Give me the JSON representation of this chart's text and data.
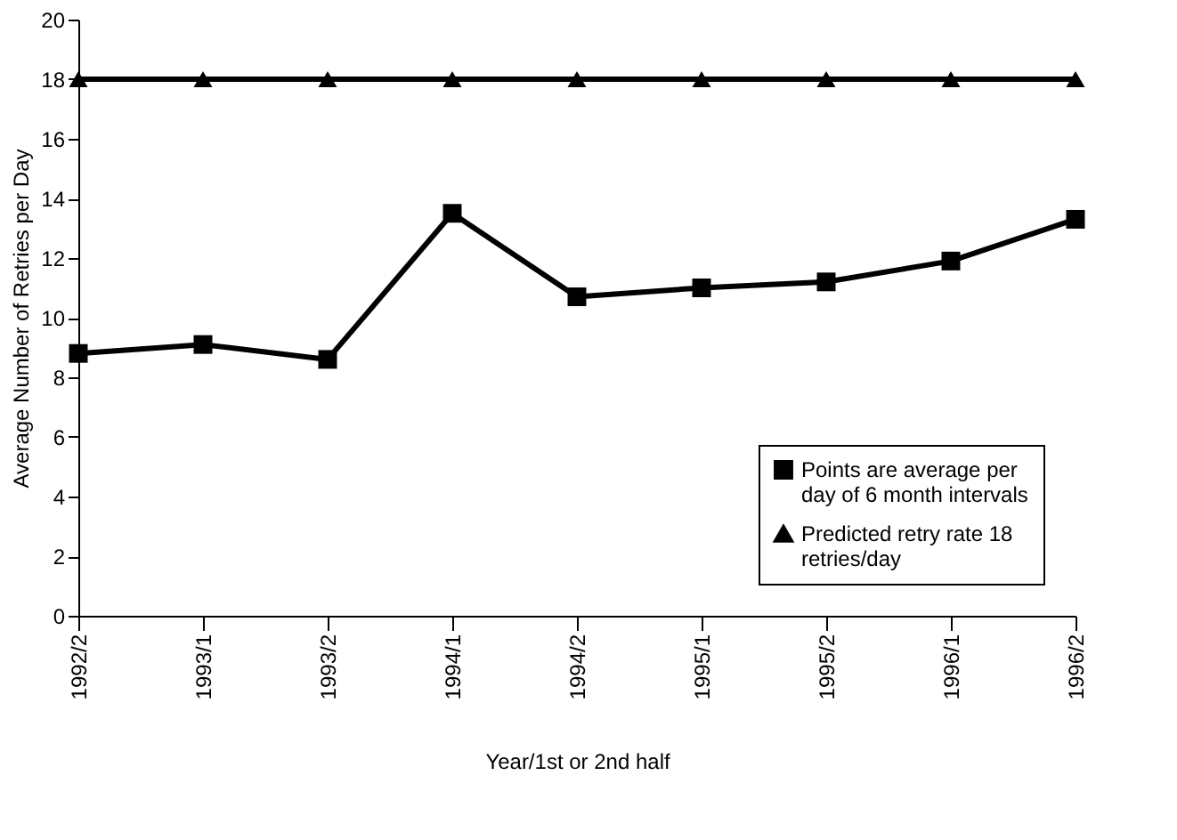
{
  "chart_data": {
    "type": "line",
    "xlabel": "Year/1st or 2nd half",
    "ylabel": "Average Number of Retries per Day",
    "categories": [
      "1992/2",
      "1993/1",
      "1993/2",
      "1994/1",
      "1994/2",
      "1995/1",
      "1995/2",
      "1996/1",
      "1996/2"
    ],
    "series": [
      {
        "name": "Points are average per day of 6 month intervals",
        "color": "#000000",
        "marker": "square",
        "values": [
          8.8,
          9.1,
          8.6,
          13.5,
          10.7,
          11.0,
          11.2,
          11.9,
          13.3
        ]
      },
      {
        "name": "Predicted retry rate 18 retries/day",
        "color": "#000000",
        "marker": "triangle",
        "values": [
          18,
          18,
          18,
          18,
          18,
          18,
          18,
          18,
          18
        ]
      }
    ],
    "ylim": [
      0,
      20
    ],
    "yticks": [
      0,
      2,
      4,
      6,
      8,
      10,
      12,
      14,
      16,
      18,
      20
    ],
    "grid": false,
    "legend": "bottom right",
    "line_style": "solid"
  }
}
